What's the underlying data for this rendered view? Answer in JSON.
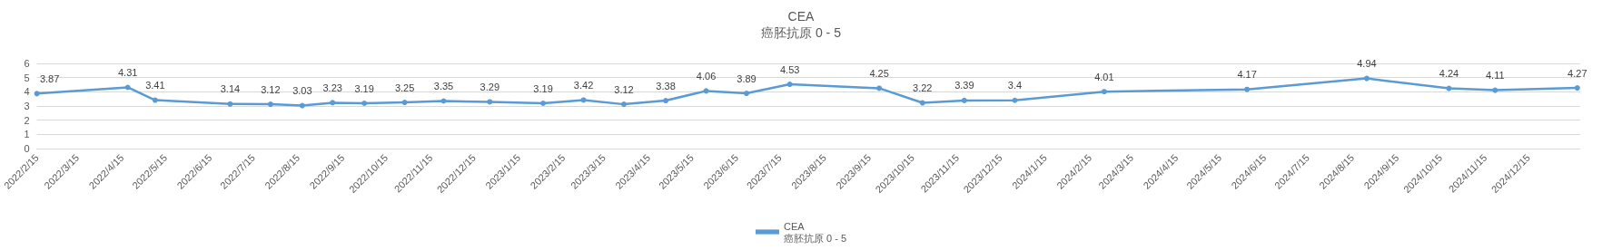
{
  "chart_data": {
    "type": "line",
    "title": "CEA",
    "subtitle": "癌胚抗原 0 - 5",
    "x": [
      "2022-02-15",
      "2022-04-19",
      "2022-05-08",
      "2022-06-29",
      "2022-07-27",
      "2022-08-18",
      "2022-09-08",
      "2022-09-30",
      "2022-10-28",
      "2022-11-24",
      "2022-12-26",
      "2023-02-01",
      "2023-03-01",
      "2023-03-29",
      "2023-04-27",
      "2023-05-25",
      "2023-06-22",
      "2023-07-22",
      "2023-09-22",
      "2023-10-22",
      "2023-11-20",
      "2023-12-25",
      "2024-02-25",
      "2024-06-03",
      "2024-08-25",
      "2024-10-21",
      "2024-11-22",
      "2025-01-18"
    ],
    "series": [
      {
        "name": "CEA\n癌胚抗原 0 - 5",
        "color": "#5b9bd5",
        "values": [
          3.87,
          4.31,
          3.41,
          3.14,
          3.12,
          3.03,
          3.23,
          3.19,
          3.25,
          3.35,
          3.29,
          3.19,
          3.42,
          3.12,
          3.38,
          4.06,
          3.89,
          4.53,
          4.25,
          3.22,
          3.39,
          3.4,
          4.01,
          4.17,
          4.94,
          4.24,
          4.11,
          4.27
        ]
      }
    ],
    "xlim": [
      "2022-02-15",
      "2025-01-20"
    ],
    "xticks": [
      {
        "value": "2022-02-15",
        "label": "2022/2/15"
      },
      {
        "value": "2022-03-15",
        "label": "2022/3/15"
      },
      {
        "value": "2022-04-15",
        "label": "2022/4/15"
      },
      {
        "value": "2022-05-15",
        "label": "2022/5/15"
      },
      {
        "value": "2022-06-15",
        "label": "2022/6/15"
      },
      {
        "value": "2022-07-15",
        "label": "2022/7/15"
      },
      {
        "value": "2022-08-15",
        "label": "2022/8/15"
      },
      {
        "value": "2022-09-15",
        "label": "2022/9/15"
      },
      {
        "value": "2022-10-15",
        "label": "2022/10/15"
      },
      {
        "value": "2022-11-15",
        "label": "2022/11/15"
      },
      {
        "value": "2022-12-15",
        "label": "2022/12/15"
      },
      {
        "value": "2023-01-15",
        "label": "2023/1/15"
      },
      {
        "value": "2023-02-15",
        "label": "2023/2/15"
      },
      {
        "value": "2023-03-15",
        "label": "2023/3/15"
      },
      {
        "value": "2023-04-15",
        "label": "2023/4/15"
      },
      {
        "value": "2023-05-15",
        "label": "2023/5/15"
      },
      {
        "value": "2023-06-15",
        "label": "2023/6/15"
      },
      {
        "value": "2023-07-15",
        "label": "2023/7/15"
      },
      {
        "value": "2023-08-15",
        "label": "2023/8/15"
      },
      {
        "value": "2023-09-15",
        "label": "2023/9/15"
      },
      {
        "value": "2023-10-15",
        "label": "2023/10/15"
      },
      {
        "value": "2023-11-15",
        "label": "2023/11/15"
      },
      {
        "value": "2023-12-15",
        "label": "2023/12/15"
      },
      {
        "value": "2024-01-15",
        "label": "2024/1/15"
      },
      {
        "value": "2024-02-15",
        "label": "2024/2/15"
      },
      {
        "value": "2024-03-15",
        "label": "2024/3/15"
      },
      {
        "value": "2024-04-15",
        "label": "2024/4/15"
      },
      {
        "value": "2024-05-15",
        "label": "2024/5/15"
      },
      {
        "value": "2024-06-15",
        "label": "2024/6/15"
      },
      {
        "value": "2024-07-15",
        "label": "2024/7/15"
      },
      {
        "value": "2024-08-15",
        "label": "2024/8/15"
      },
      {
        "value": "2024-09-15",
        "label": "2024/9/15"
      },
      {
        "value": "2024-10-15",
        "label": "2024/10/15"
      },
      {
        "value": "2024-11-15",
        "label": "2024/11/15"
      },
      {
        "value": "2024-12-15",
        "label": "2024/12/15"
      }
    ],
    "ylim": [
      0,
      6
    ],
    "yticks": [
      0,
      1,
      2,
      3,
      4,
      5,
      6
    ],
    "grid": "y",
    "legend": "bottom",
    "marker": "circle",
    "line_style": "solid",
    "data_labels": true
  }
}
